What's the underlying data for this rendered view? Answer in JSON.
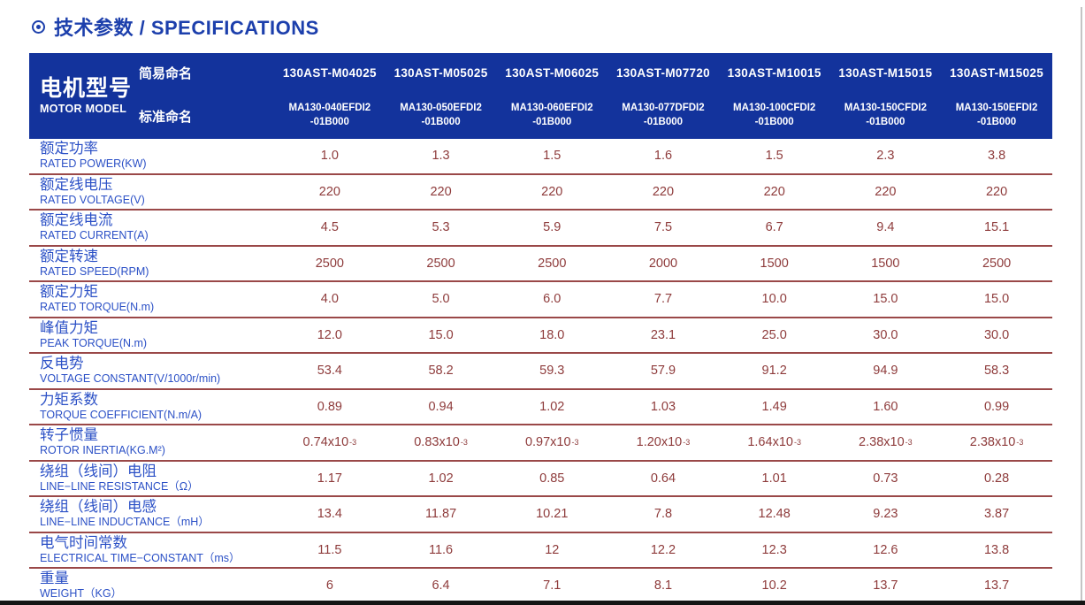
{
  "title": {
    "text": "技术参数 / SPECIFICATIONS"
  },
  "colors": {
    "header_bg": "#13339c",
    "title_blue": "#1c3fac",
    "label_blue": "#2b50c6",
    "value_maroon": "#8e3b3b",
    "separator": "#9a4848"
  },
  "table": {
    "header": {
      "model_zh": "电机型号",
      "model_en": "MOTOR MODEL",
      "simple_label": "简易命名",
      "standard_label": "标准命名",
      "columns": [
        {
          "simple": "130AST-M04025",
          "standard_line1": "MA130-040EFDI2",
          "standard_line2": "-01B000"
        },
        {
          "simple": "130AST-M05025",
          "standard_line1": "MA130-050EFDI2",
          "standard_line2": "-01B000"
        },
        {
          "simple": "130AST-M06025",
          "standard_line1": "MA130-060EFDI2",
          "standard_line2": "-01B000"
        },
        {
          "simple": "130AST-M07720",
          "standard_line1": "MA130-077DFDI2",
          "standard_line2": "-01B000"
        },
        {
          "simple": "130AST-M10015",
          "standard_line1": "MA130-100CFDI2",
          "standard_line2": "-01B000"
        },
        {
          "simple": "130AST-M15015",
          "standard_line1": "MA130-150CFDI2",
          "standard_line2": "-01B000"
        },
        {
          "simple": "130AST-M15025",
          "standard_line1": "MA130-150EFDI2",
          "standard_line2": "-01B000"
        }
      ]
    },
    "rows": [
      {
        "zh": "额定功率",
        "en": "RATED POWER(KW)",
        "values": [
          "1.0",
          "1.3",
          "1.5",
          "1.6",
          "1.5",
          "2.3",
          "3.8"
        ]
      },
      {
        "zh": "额定线电压",
        "en": "RATED VOLTAGE(V)",
        "values": [
          "220",
          "220",
          "220",
          "220",
          "220",
          "220",
          "220"
        ]
      },
      {
        "zh": "额定线电流",
        "en": "RATED CURRENT(A)",
        "values": [
          "4.5",
          "5.3",
          "5.9",
          "7.5",
          "6.7",
          "9.4",
          "15.1"
        ]
      },
      {
        "zh": "额定转速",
        "en": "RATED SPEED(RPM)",
        "values": [
          "2500",
          "2500",
          "2500",
          "2000",
          "1500",
          "1500",
          "2500"
        ]
      },
      {
        "zh": "额定力矩",
        "en": "RATED TORQUE(N.m)",
        "values": [
          "4.0",
          "5.0",
          "6.0",
          "7.7",
          "10.0",
          "15.0",
          "15.0"
        ]
      },
      {
        "zh": "峰值力矩",
        "en": "PEAK TORQUE(N.m)",
        "values": [
          "12.0",
          "15.0",
          "18.0",
          "23.1",
          "25.0",
          "30.0",
          "30.0"
        ]
      },
      {
        "zh": "反电势",
        "en": "VOLTAGE CONSTANT(V/1000r/min)",
        "values": [
          "53.4",
          "58.2",
          "59.3",
          "57.9",
          "91.2",
          "94.9",
          "58.3"
        ]
      },
      {
        "zh": "力矩系数",
        "en": "TORQUE COEFFICIENT(N.m/A)",
        "values": [
          "0.89",
          "0.94",
          "1.02",
          "1.03",
          "1.49",
          "1.60",
          "0.99"
        ]
      },
      {
        "zh": "转子惯量",
        "en": "ROTOR INERTIA(KG.M²)",
        "values": [
          "0.74x10^-3",
          "0.83x10^-3",
          "0.97x10^-3",
          "1.20x10^-3",
          "1.64x10^-3",
          "2.38x10^-3",
          "2.38x10^-3"
        ]
      },
      {
        "zh": "绕组（线间）电阻",
        "en": "LINE−LINE RESISTANCE（Ω）",
        "values": [
          "1.17",
          "1.02",
          "0.85",
          "0.64",
          "1.01",
          "0.73",
          "0.28"
        ]
      },
      {
        "zh": "绕组（线间）电感",
        "en": "LINE−LINE INDUCTANCE（mH）",
        "values": [
          "13.4",
          "11.87",
          "10.21",
          "7.8",
          "12.48",
          "9.23",
          "3.87"
        ]
      },
      {
        "zh": "电气时间常数",
        "en": "ELECTRICAL TIME−CONSTANT（ms）",
        "values": [
          "11.5",
          "11.6",
          "12",
          "12.2",
          "12.3",
          "12.6",
          "13.8"
        ]
      },
      {
        "zh": "重量",
        "en": "WEIGHT（KG）",
        "values": [
          "6",
          "6.4",
          "7.1",
          "8.1",
          "10.2",
          "13.7",
          "13.7"
        ]
      }
    ]
  }
}
